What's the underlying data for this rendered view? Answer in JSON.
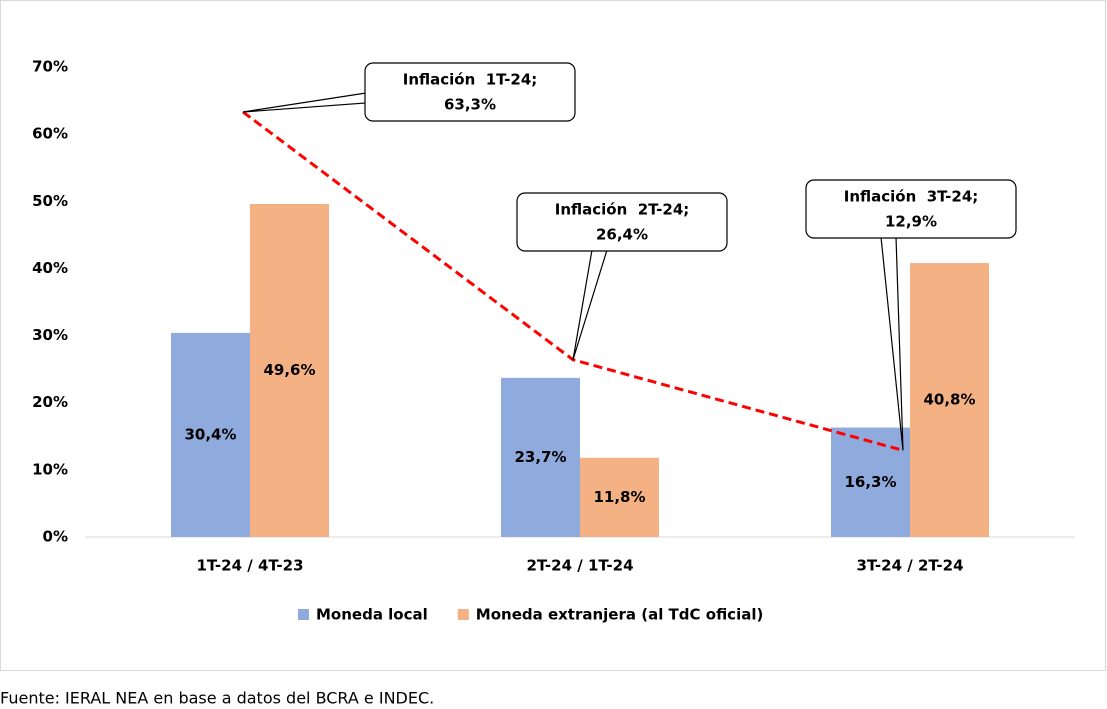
{
  "chart_data": {
    "type": "bar",
    "categories": [
      "1T-24 / 4T-23",
      "2T-24 / 1T-24",
      "3T-24 / 2T-24"
    ],
    "series": [
      {
        "name": "Moneda local",
        "color": "#8faadc",
        "values": [
          30.4,
          23.7,
          16.3
        ],
        "value_labels": [
          "30,4%",
          "23,7%",
          "16,3%"
        ]
      },
      {
        "name": "Moneda extranjera (al TdC oficial)",
        "color": "#f4b183",
        "values": [
          49.6,
          11.8,
          40.8
        ],
        "value_labels": [
          "49,6%",
          "11,8%",
          "40,8%"
        ]
      }
    ],
    "line": {
      "color": "#ff0000",
      "values": [
        63.3,
        26.4,
        12.9
      ],
      "value_labels": [
        "63,3%",
        "26,4%",
        "12,9%"
      ],
      "annotations": [
        "Inflación  1T-24;",
        "Inflación  2T-24;",
        "Inflación  3T-24;"
      ]
    },
    "ylim": [
      0,
      70
    ],
    "yticks": [
      {
        "value": 0,
        "label": "0%"
      },
      {
        "value": 10,
        "label": "10%"
      },
      {
        "value": 20,
        "label": "20%"
      },
      {
        "value": 30,
        "label": "30%"
      },
      {
        "value": 40,
        "label": "40%"
      },
      {
        "value": 50,
        "label": "50%"
      },
      {
        "value": 60,
        "label": "60%"
      },
      {
        "value": 70,
        "label": "70%"
      }
    ],
    "grid": false,
    "legend": "bottom",
    "source": "Fuente: IERAL NEA en base a datos del BCRA e INDEC."
  }
}
